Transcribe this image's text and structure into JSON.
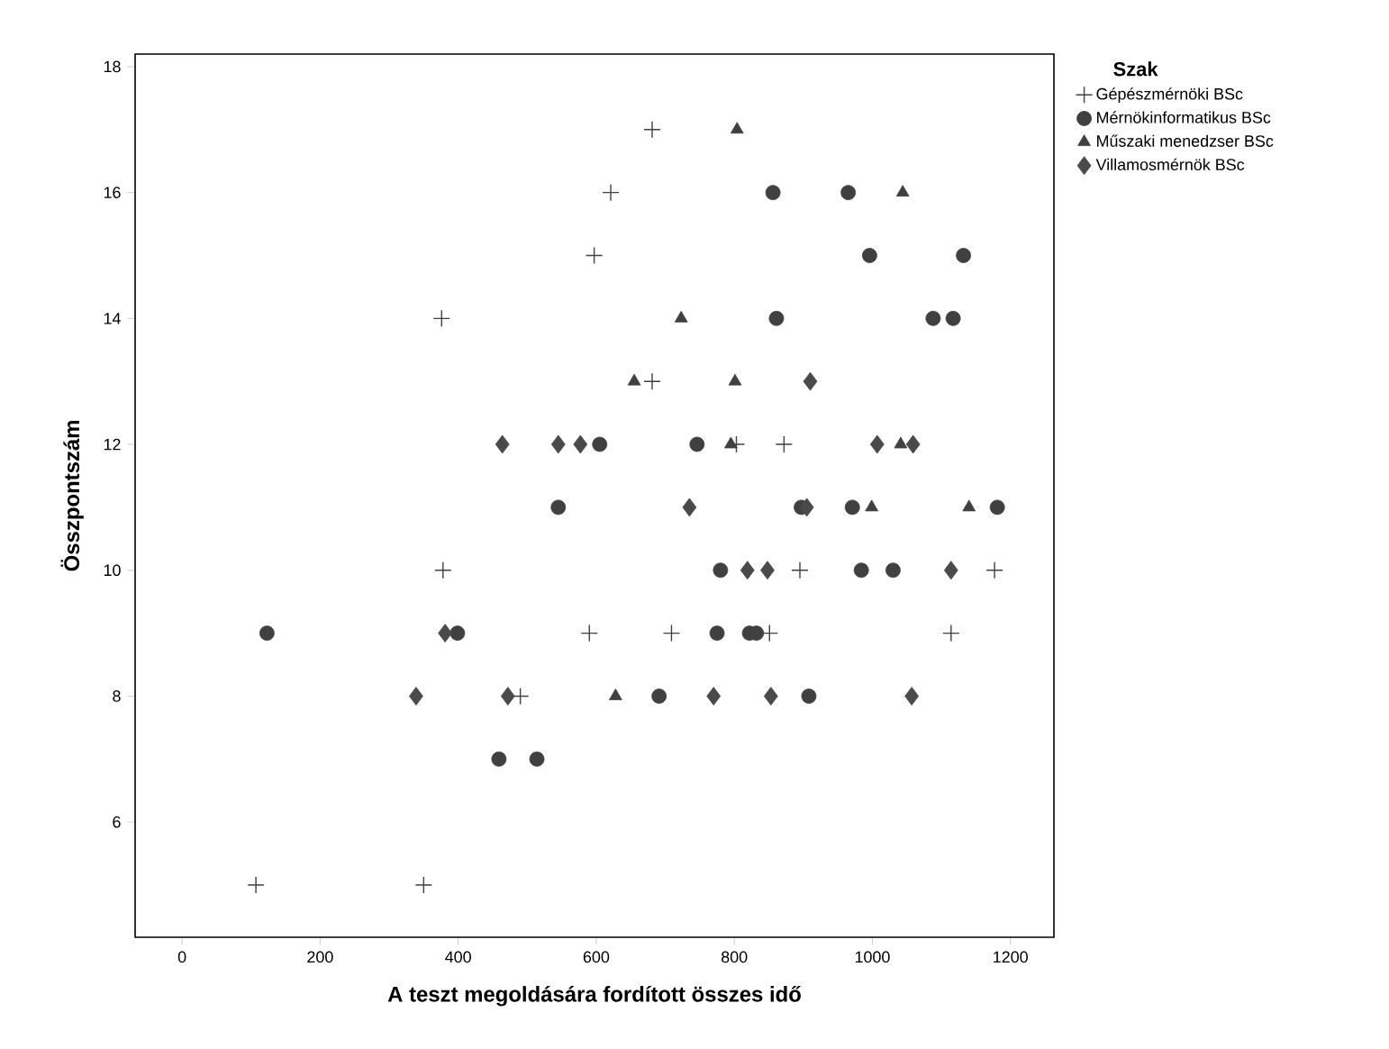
{
  "chart_data": {
    "type": "scatter",
    "xlabel": "A teszt megoldására fordított összes idő",
    "ylabel": "Összpontszám",
    "legend_title": "Szak",
    "legend": "right",
    "grid": false,
    "xlim": [
      -68,
      1263
    ],
    "ylim": [
      4.17,
      18.2
    ],
    "xticks": [
      0,
      200,
      400,
      600,
      800,
      1000,
      1200
    ],
    "yticks": [
      6,
      8,
      10,
      12,
      14,
      16,
      18
    ],
    "series": [
      {
        "name": "Gépészmérnöki BSc",
        "color": "#404040",
        "marker": "cross",
        "x": [
          681,
          621,
          597,
          376,
          681,
          803,
          872,
          378,
          895,
          1177,
          590,
          709,
          851,
          1114,
          490,
          107,
          350
        ],
        "values": [
          17,
          16,
          15,
          14,
          13,
          12,
          12,
          10,
          10,
          10,
          9,
          9,
          9,
          9,
          8,
          5,
          5
        ]
      },
      {
        "name": "Mérnökinformatikus BSc",
        "color": "#404040",
        "marker": "circle",
        "x": [
          856,
          965,
          996,
          1132,
          861,
          1088,
          1117,
          605,
          746,
          545,
          897,
          971,
          1181,
          780,
          984,
          1030,
          123,
          399,
          775,
          822,
          832,
          691,
          908,
          459,
          514
        ],
        "values": [
          16,
          16,
          15,
          15,
          14,
          14,
          14,
          12,
          12,
          11,
          11,
          11,
          11,
          10,
          10,
          10,
          9,
          9,
          9,
          9,
          9,
          8,
          8,
          7,
          7
        ]
      },
      {
        "name": "Műszaki menedzser BSc",
        "color": "#404040",
        "marker": "triangle",
        "x": [
          804,
          1044,
          723,
          655,
          801,
          795,
          1041,
          999,
          1140,
          628
        ],
        "values": [
          17,
          16,
          14,
          13,
          13,
          12,
          12,
          11,
          11,
          8
        ]
      },
      {
        "name": "Villamosmérnök BSc",
        "color": "#4a4a4a",
        "marker": "diamond",
        "x": [
          910,
          464,
          545,
          577,
          1007,
          1059,
          735,
          905,
          819,
          848,
          1114,
          381,
          339,
          472,
          770,
          853,
          1057
        ],
        "values": [
          13,
          12,
          12,
          12,
          12,
          12,
          11,
          11,
          10,
          10,
          10,
          9,
          8,
          8,
          8,
          8,
          8
        ]
      }
    ]
  }
}
